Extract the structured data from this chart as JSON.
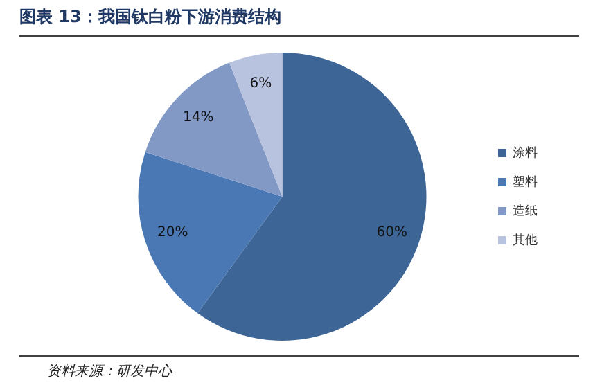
{
  "chart_data": {
    "type": "pie",
    "title": "图表 13：我国钛白粉下游消费结构",
    "categories": [
      "涂料",
      "塑料",
      "造纸",
      "其他"
    ],
    "values": [
      60,
      20,
      14,
      6
    ],
    "value_labels": [
      "60%",
      "20%",
      "14%",
      "6%"
    ],
    "colors": [
      "#3d6596",
      "#4a78b4",
      "#8299c6",
      "#b8c4df"
    ],
    "legend": "right",
    "annotations": [
      "资料来源：研发中心"
    ]
  }
}
